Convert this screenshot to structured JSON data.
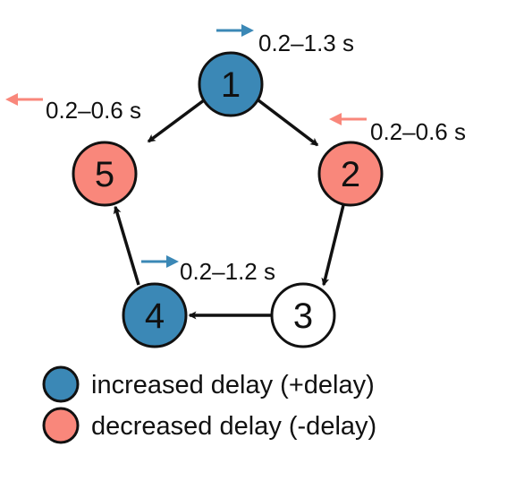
{
  "colors": {
    "increased": "#3b88b6",
    "decreased": "#f9877b",
    "neutral": "#ffffff",
    "stroke": "#111111"
  },
  "nodes": [
    {
      "id": "1",
      "label": "1",
      "kind": "increased"
    },
    {
      "id": "2",
      "label": "2",
      "kind": "decreased"
    },
    {
      "id": "3",
      "label": "3",
      "kind": "neutral"
    },
    {
      "id": "4",
      "label": "4",
      "kind": "increased"
    },
    {
      "id": "5",
      "label": "5",
      "kind": "decreased"
    }
  ],
  "edges": [
    {
      "from": "1",
      "to": "5"
    },
    {
      "from": "1",
      "to": "2"
    },
    {
      "from": "2",
      "to": "3"
    },
    {
      "from": "3",
      "to": "4"
    },
    {
      "from": "4",
      "to": "5"
    }
  ],
  "annotations": [
    {
      "node": "1",
      "text": "0.2–1.3 s",
      "direction": "right",
      "kind": "increased"
    },
    {
      "node": "5",
      "text": "0.2–0.6 s",
      "direction": "left",
      "kind": "decreased"
    },
    {
      "node": "2",
      "text": "0.2–0.6 s",
      "direction": "left",
      "kind": "decreased"
    },
    {
      "node": "4",
      "text": "0.2–1.2 s",
      "direction": "right",
      "kind": "increased"
    }
  ],
  "legend": {
    "increased": "increased delay (+delay)",
    "decreased": "decreased delay (-delay)"
  }
}
